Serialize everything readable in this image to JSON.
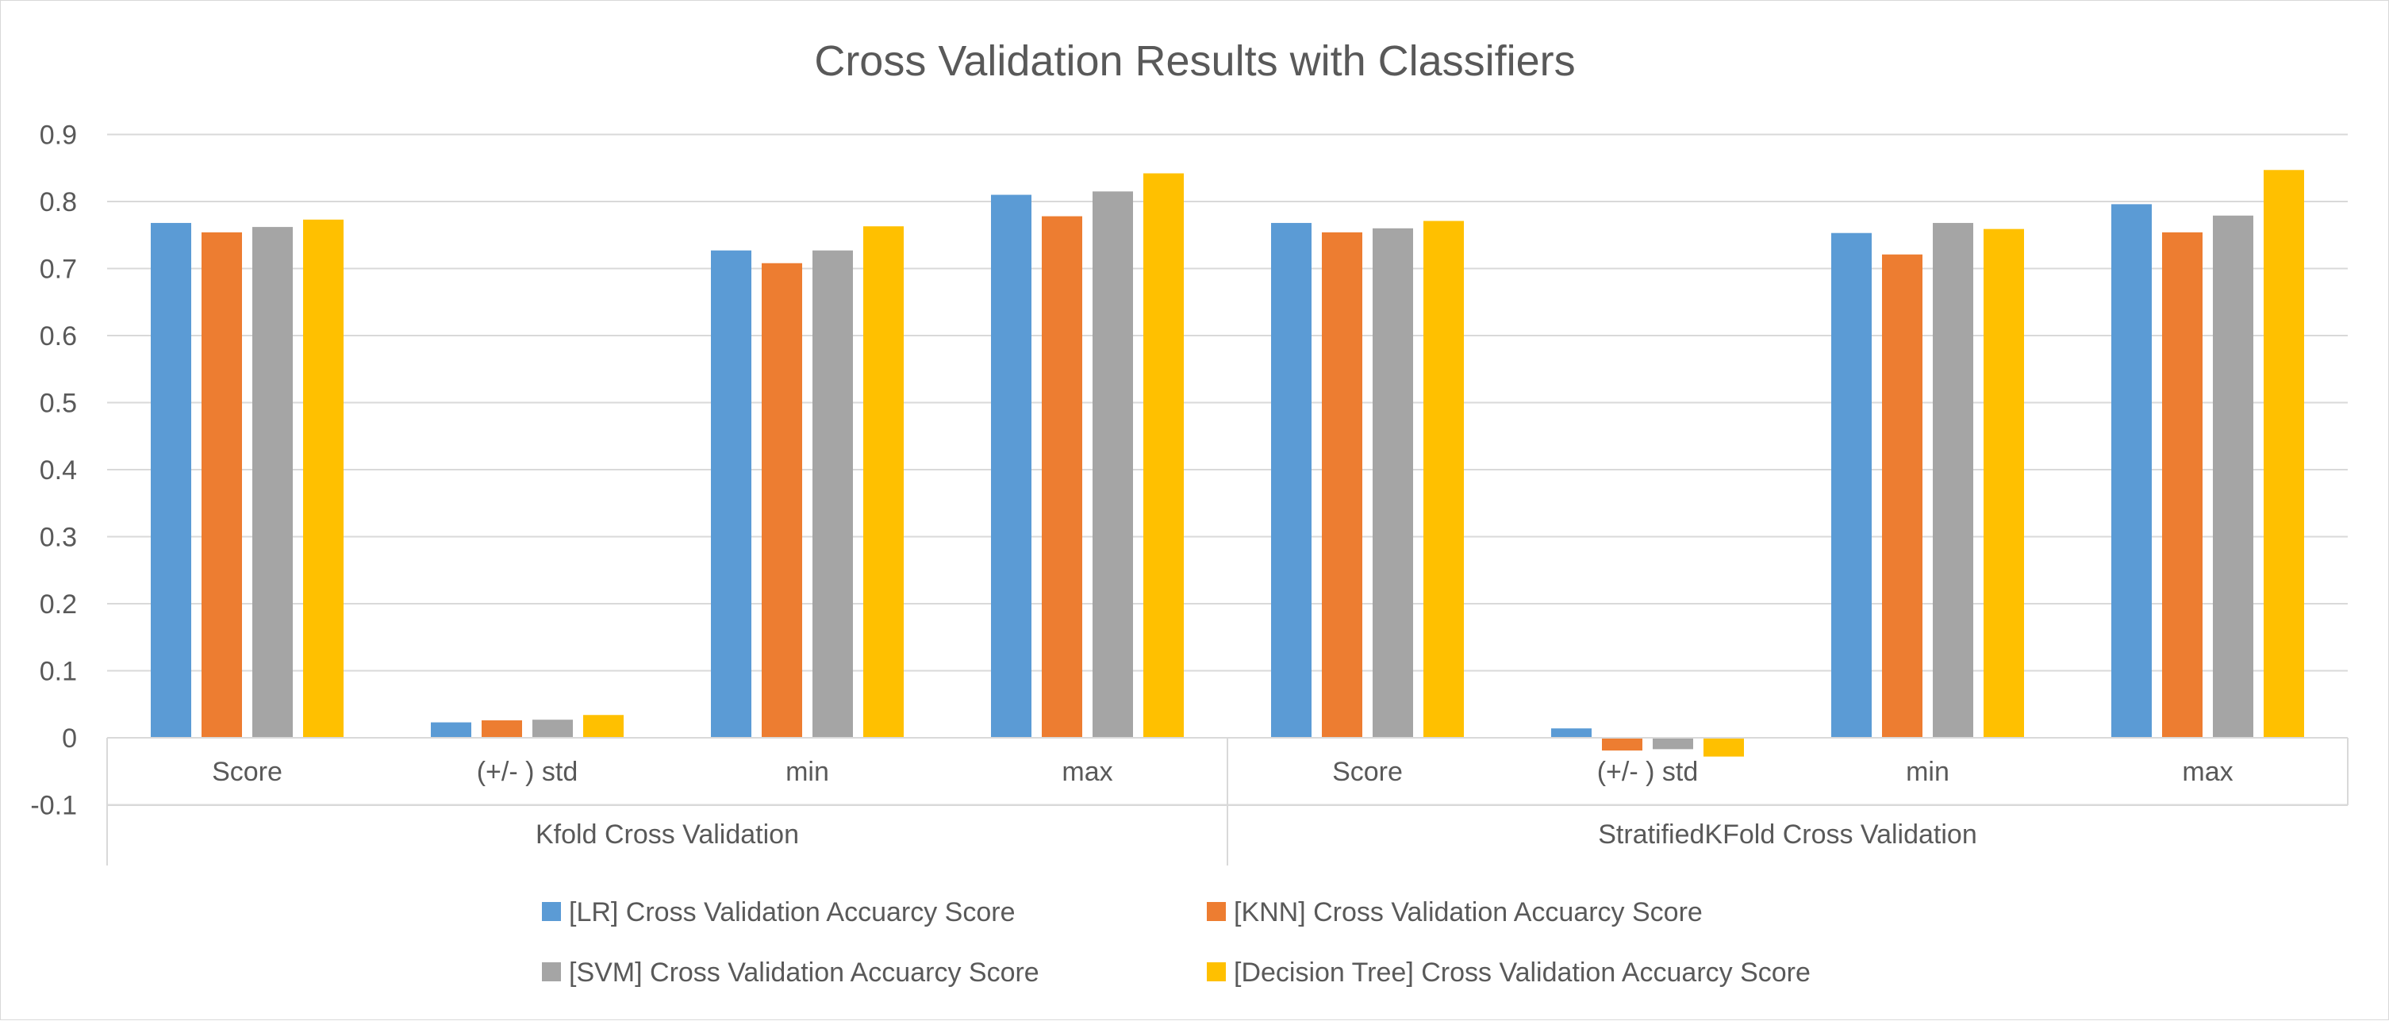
{
  "chart_data": {
    "type": "bar",
    "title": "Cross Validation Results with Classifiers",
    "groups": [
      {
        "label": "Kfold Cross Validation",
        "categories": [
          "Score",
          "(+/- ) std",
          "min",
          "max"
        ]
      },
      {
        "label": "StratifiedKFold Cross Validation",
        "categories": [
          "Score",
          "(+/- ) std",
          "min",
          "max"
        ]
      }
    ],
    "categories": [
      "Score",
      "(+/- ) std",
      "min",
      "max",
      "Score",
      "(+/- ) std",
      "min",
      "max"
    ],
    "series": [
      {
        "name": "[LR] Cross Validation Accuarcy Score",
        "color": "#5b9bd5",
        "values": [
          0.768,
          0.023,
          0.727,
          0.81,
          0.768,
          0.014,
          0.753,
          0.796
        ]
      },
      {
        "name": "[KNN] Cross Validation Accuarcy Score",
        "color": "#ed7d31",
        "values": [
          0.754,
          0.026,
          0.708,
          0.778,
          0.754,
          -0.019,
          0.721,
          0.754
        ]
      },
      {
        "name": "[SVM] Cross Validation Accuarcy Score",
        "color": "#a5a5a5",
        "values": [
          0.762,
          0.027,
          0.727,
          0.815,
          0.76,
          -0.017,
          0.768,
          0.779
        ]
      },
      {
        "name": "[Decision Tree] Cross Validation Accuarcy Score",
        "color": "#ffc000",
        "values": [
          0.773,
          0.034,
          0.763,
          0.842,
          0.771,
          -0.028,
          0.759,
          0.847
        ]
      }
    ],
    "ylim": [
      -0.1,
      0.9
    ],
    "yticks": [
      "-0.1",
      "0",
      "0.1",
      "0.2",
      "0.3",
      "0.4",
      "0.5",
      "0.6",
      "0.7",
      "0.8",
      "0.9"
    ],
    "grid": true,
    "legend_position": "bottom"
  }
}
